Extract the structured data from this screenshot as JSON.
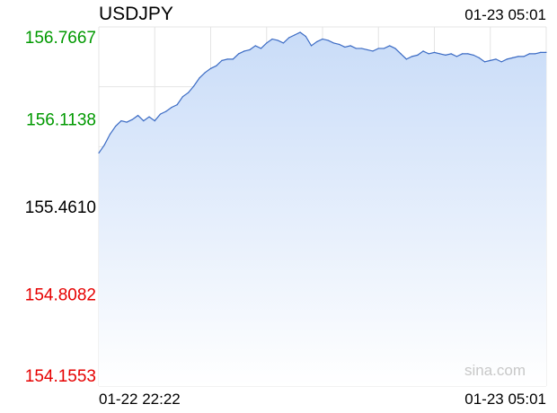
{
  "symbol": "USDJPY",
  "timestamp": "01-23 05:01",
  "watermark": "sina.com",
  "colors": {
    "up": "#009900",
    "down": "#e60000",
    "neutral": "#000000",
    "line": "#3b6bc4",
    "fill_top": "#c9dcf8",
    "fill_bottom": "#ffffff",
    "grid": "#e4e4e4"
  },
  "chart_data": {
    "type": "area",
    "title": "USDJPY",
    "xlabel": "",
    "ylabel": "",
    "reference_price": 155.461,
    "ylim": [
      154.1553,
      156.7667
    ],
    "y_ticks": [
      "156.7667",
      "156.1138",
      "155.4610",
      "154.8082",
      "154.1553"
    ],
    "x_ticks": [
      "01-22 22:22",
      "01-23 05:01"
    ],
    "grid": true,
    "x_start": "01-22 22:22",
    "x_end": "01-23 05:01",
    "series": [
      {
        "name": "",
        "x": [
          "22:22",
          "22:25",
          "22:30",
          "22:35",
          "22:40",
          "22:45",
          "22:50",
          "22:55",
          "23:00",
          "23:05",
          "23:10",
          "23:15",
          "23:20",
          "23:25",
          "23:30",
          "23:35",
          "23:40",
          "23:45",
          "23:50",
          "23:55",
          "00:00",
          "00:05",
          "00:10",
          "00:15",
          "00:20",
          "00:25",
          "00:30",
          "00:35",
          "00:40",
          "00:45",
          "00:50",
          "00:55",
          "01:00",
          "01:05",
          "01:10",
          "01:15",
          "01:20",
          "01:25",
          "01:30",
          "01:35",
          "01:40",
          "01:45",
          "01:50",
          "01:55",
          "02:00",
          "02:05",
          "02:10",
          "02:15",
          "02:20",
          "02:25",
          "02:30",
          "02:35",
          "02:40",
          "02:45",
          "02:50",
          "02:55",
          "03:00",
          "03:05",
          "03:10",
          "03:15",
          "03:20",
          "03:25",
          "03:30",
          "03:35",
          "03:40",
          "03:45",
          "03:50",
          "03:55",
          "04:00",
          "04:05",
          "04:10",
          "04:15",
          "04:20",
          "04:25",
          "04:30",
          "04:35",
          "04:40",
          "04:45",
          "04:50",
          "04:55",
          "05:01"
        ],
        "values": [
          155.86,
          155.92,
          156.0,
          156.06,
          156.1,
          156.09,
          156.11,
          156.14,
          156.1,
          156.13,
          156.1,
          156.15,
          156.17,
          156.2,
          156.22,
          156.28,
          156.31,
          156.36,
          156.42,
          156.46,
          156.49,
          156.51,
          156.55,
          156.56,
          156.56,
          156.6,
          156.62,
          156.63,
          156.66,
          156.64,
          156.68,
          156.71,
          156.7,
          156.68,
          156.72,
          156.74,
          156.76,
          156.73,
          156.66,
          156.69,
          156.71,
          156.7,
          156.68,
          156.67,
          156.65,
          156.66,
          156.64,
          156.64,
          156.63,
          156.62,
          156.64,
          156.64,
          156.66,
          156.64,
          156.6,
          156.56,
          156.58,
          156.59,
          156.62,
          156.6,
          156.61,
          156.6,
          156.59,
          156.6,
          156.58,
          156.6,
          156.6,
          156.59,
          156.57,
          156.54,
          156.55,
          156.56,
          156.54,
          156.56,
          156.57,
          156.58,
          156.58,
          156.6,
          156.6,
          156.61,
          156.61
        ]
      }
    ]
  }
}
